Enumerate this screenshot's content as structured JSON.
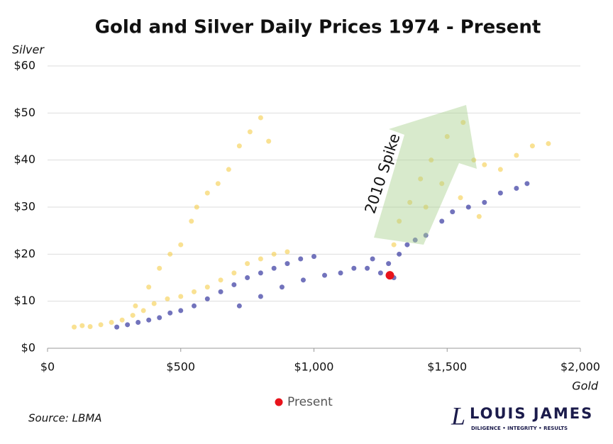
{
  "chart_data": {
    "type": "scatter",
    "title": "Gold and Silver Daily Prices 1974 - Present",
    "x_label": "Gold",
    "y_label": "Silver",
    "xlim": [
      0,
      2000
    ],
    "ylim": [
      0,
      60
    ],
    "xticks": [
      {
        "value": 0,
        "label": "$0"
      },
      {
        "value": 500,
        "label": "$500"
      },
      {
        "value": 1000,
        "label": "$1,000"
      },
      {
        "value": 1500,
        "label": "$1,500"
      },
      {
        "value": 2000,
        "label": "$2,000"
      }
    ],
    "yticks": [
      {
        "value": 0,
        "label": "$0"
      },
      {
        "value": 10,
        "label": "$10"
      },
      {
        "value": 20,
        "label": "$20"
      },
      {
        "value": 30,
        "label": "$30"
      },
      {
        "value": 40,
        "label": "$40"
      },
      {
        "value": 50,
        "label": "$50"
      },
      {
        "value": 60,
        "label": "$60"
      }
    ],
    "grid": true,
    "series": [
      {
        "color": "#f5cd4a",
        "x": [
          100,
          130,
          160,
          200,
          240,
          280,
          320,
          360,
          400,
          450,
          500,
          550,
          600,
          650,
          700,
          750,
          800,
          850,
          900,
          330,
          380,
          420,
          460,
          500,
          540,
          560,
          600,
          640,
          680,
          720,
          760,
          800,
          830,
          1320,
          1360,
          1400,
          1440,
          1500,
          1560,
          1600,
          1640,
          1700,
          1760,
          1820,
          1880,
          1300,
          1420,
          1480,
          1550,
          1620
        ],
        "values": [
          4.5,
          4.8,
          4.6,
          5,
          5.5,
          6,
          7,
          8,
          9.5,
          10.5,
          11,
          12,
          13,
          14.5,
          16,
          18,
          19,
          20,
          20.5,
          9,
          13,
          17,
          20,
          22,
          27,
          30,
          33,
          35,
          38,
          43,
          46,
          49,
          44,
          27,
          31,
          36,
          40,
          45,
          48,
          40,
          39,
          38,
          41,
          43,
          43.5,
          22,
          30,
          35,
          32,
          28
        ]
      },
      {
        "color": "#14168f",
        "x": [
          260,
          300,
          340,
          380,
          420,
          460,
          500,
          550,
          600,
          650,
          700,
          750,
          800,
          850,
          900,
          950,
          1000,
          720,
          800,
          880,
          960,
          1040,
          1100,
          1150,
          1200,
          1250,
          1280,
          1320,
          1350,
          1380,
          1420,
          1300,
          1220,
          1480,
          1520,
          1580,
          1640,
          1700,
          1760,
          1800
        ],
        "values": [
          4.5,
          5,
          5.5,
          6,
          6.5,
          7.5,
          8,
          9,
          10.5,
          12,
          13.5,
          15,
          16,
          17,
          18,
          19,
          19.5,
          9,
          11,
          13,
          14.5,
          15.5,
          16,
          17,
          17,
          16,
          18,
          20,
          22,
          23,
          24,
          15,
          19,
          27,
          29,
          30,
          31,
          33,
          34,
          35
        ]
      },
      {
        "name": "Present",
        "color": "#e8131b",
        "x": [
          1285
        ],
        "values": [
          15.5
        ]
      }
    ],
    "annotation": "2010 Spike",
    "source": "Source: LBMA",
    "brand_mark": "L",
    "brand": "LOUIS JAMES",
    "brand_tagline": "DILIGENCE  •  INTEGRITY  •  RESULTS"
  }
}
